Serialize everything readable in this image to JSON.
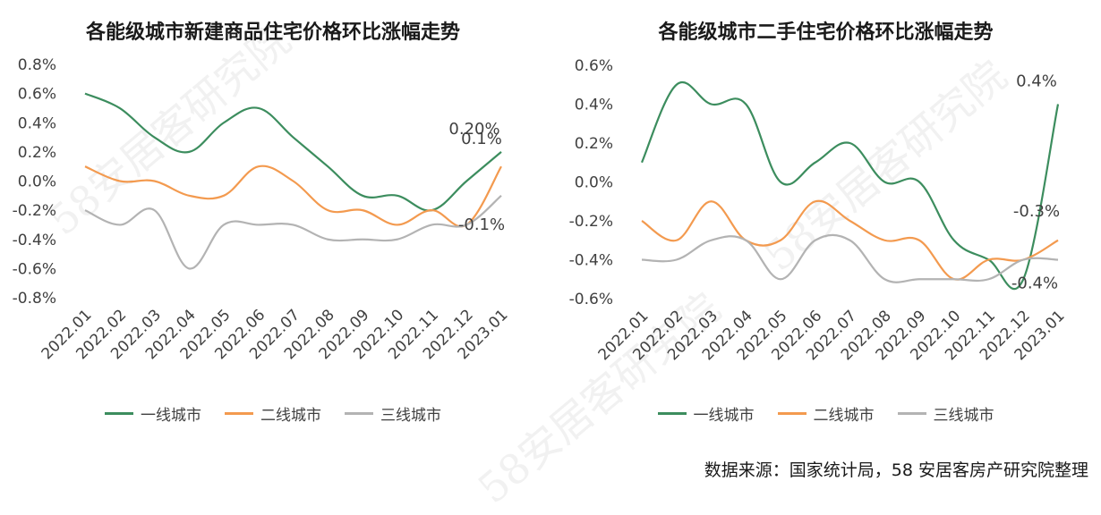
{
  "source_text": "数据来源：国家统计局，58 安居客房产研究院整理",
  "watermark_text": "58安居客研究院",
  "colors": {
    "tier1": "#3c8d5e",
    "tier2": "#f39a4f",
    "tier3": "#b3b3b3",
    "grid": "#e0e0e0"
  },
  "chart_data": [
    {
      "type": "line",
      "title": "各能级城市新建商品住宅价格环比涨幅走势",
      "categories": [
        "2022.01",
        "2022.02",
        "2022.03",
        "2022.04",
        "2022.05",
        "2022.06",
        "2022.07",
        "2022.08",
        "2022.09",
        "2022.10",
        "2022.11",
        "2022.12",
        "2023.01"
      ],
      "series": [
        {
          "name": "一线城市",
          "values": [
            0.6,
            0.5,
            0.3,
            0.2,
            0.4,
            0.5,
            0.3,
            0.1,
            -0.1,
            -0.1,
            -0.2,
            0.0,
            0.2
          ]
        },
        {
          "name": "二线城市",
          "values": [
            0.1,
            0.0,
            0.0,
            -0.1,
            -0.1,
            0.1,
            0.0,
            -0.2,
            -0.2,
            -0.3,
            -0.2,
            -0.3,
            0.1
          ]
        },
        {
          "name": "三线城市",
          "values": [
            -0.2,
            -0.3,
            -0.2,
            -0.6,
            -0.3,
            -0.3,
            -0.3,
            -0.4,
            -0.4,
            -0.4,
            -0.3,
            -0.3,
            -0.1
          ]
        }
      ],
      "yticks": [
        "0.8%",
        "0.6%",
        "0.4%",
        "0.2%",
        "0.0%",
        "-0.2%",
        "-0.4%",
        "-0.6%",
        "-0.8%"
      ],
      "ylim": [
        -0.8,
        0.8
      ],
      "end_labels": [
        "0.20%",
        "0.1%",
        "-0.1%"
      ],
      "legend": "bottom"
    },
    {
      "type": "line",
      "title": "各能级城市二手住宅价格环比涨幅走势",
      "categories": [
        "2022.01",
        "2022.02",
        "2022.03",
        "2022.04",
        "2022.05",
        "2022.06",
        "2022.07",
        "2022.08",
        "2022.09",
        "2022.10",
        "2022.11",
        "2022.12",
        "2023.01"
      ],
      "series": [
        {
          "name": "一线城市",
          "values": [
            0.1,
            0.5,
            0.4,
            0.4,
            0.0,
            0.1,
            0.2,
            0.0,
            0.0,
            -0.3,
            -0.4,
            -0.5,
            0.4
          ]
        },
        {
          "name": "二线城市",
          "values": [
            -0.2,
            -0.3,
            -0.1,
            -0.3,
            -0.3,
            -0.1,
            -0.2,
            -0.3,
            -0.3,
            -0.5,
            -0.4,
            -0.4,
            -0.3
          ]
        },
        {
          "name": "三线城市",
          "values": [
            -0.4,
            -0.4,
            -0.3,
            -0.3,
            -0.5,
            -0.3,
            -0.3,
            -0.5,
            -0.5,
            -0.5,
            -0.5,
            -0.4,
            -0.4
          ]
        }
      ],
      "yticks": [
        "0.6%",
        "0.4%",
        "0.2%",
        "0.0%",
        "-0.2%",
        "-0.4%",
        "-0.6%"
      ],
      "ylim": [
        -0.6,
        0.6
      ],
      "end_labels": [
        "0.4%",
        "-0.3%",
        "-0.4%"
      ],
      "legend": "bottom"
    }
  ]
}
